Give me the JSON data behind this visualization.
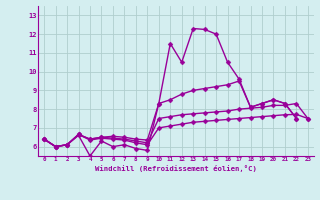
{
  "x": [
    0,
    1,
    2,
    3,
    4,
    5,
    6,
    7,
    8,
    9,
    10,
    11,
    12,
    13,
    14,
    15,
    16,
    17,
    18,
    19,
    20,
    21,
    22,
    23
  ],
  "line1": [
    6.4,
    6.0,
    6.1,
    6.6,
    5.5,
    6.3,
    6.0,
    6.1,
    5.9,
    5.8,
    8.3,
    11.5,
    10.5,
    12.3,
    12.25,
    12.0,
    10.5,
    9.6,
    8.1,
    8.3,
    8.5,
    8.3,
    7.5,
    null
  ],
  "line2": [
    6.4,
    6.0,
    6.1,
    6.65,
    6.4,
    6.5,
    6.55,
    6.5,
    6.4,
    6.35,
    8.3,
    8.5,
    8.8,
    9.0,
    9.1,
    9.2,
    9.3,
    9.5,
    8.1,
    8.3,
    8.5,
    8.3,
    7.5,
    null
  ],
  "line3": [
    6.4,
    6.0,
    6.1,
    6.65,
    6.4,
    6.5,
    6.45,
    6.4,
    6.3,
    6.2,
    7.5,
    7.6,
    7.7,
    7.75,
    7.8,
    7.85,
    7.9,
    8.0,
    8.05,
    8.1,
    8.2,
    8.2,
    8.3,
    7.5
  ],
  "line4": [
    6.4,
    6.0,
    6.1,
    6.65,
    6.35,
    6.45,
    6.4,
    6.35,
    6.2,
    6.1,
    7.0,
    7.1,
    7.2,
    7.3,
    7.35,
    7.4,
    7.45,
    7.5,
    7.55,
    7.6,
    7.65,
    7.7,
    7.72,
    7.5
  ],
  "color": "#990099",
  "bg_color": "#d4eef0",
  "grid_color": "#b0cece",
  "xlim": [
    -0.5,
    23.5
  ],
  "ylim": [
    5.5,
    13.5
  ],
  "yticks": [
    6,
    7,
    8,
    9,
    10,
    11,
    12,
    13
  ],
  "xticks": [
    0,
    1,
    2,
    3,
    4,
    5,
    6,
    7,
    8,
    9,
    10,
    11,
    12,
    13,
    14,
    15,
    16,
    17,
    18,
    19,
    20,
    21,
    22,
    23
  ],
  "xlabel": "Windchill (Refroidissement éolien,°C)",
  "marker": "D",
  "markersize": 2.5,
  "linewidth": 1.0
}
